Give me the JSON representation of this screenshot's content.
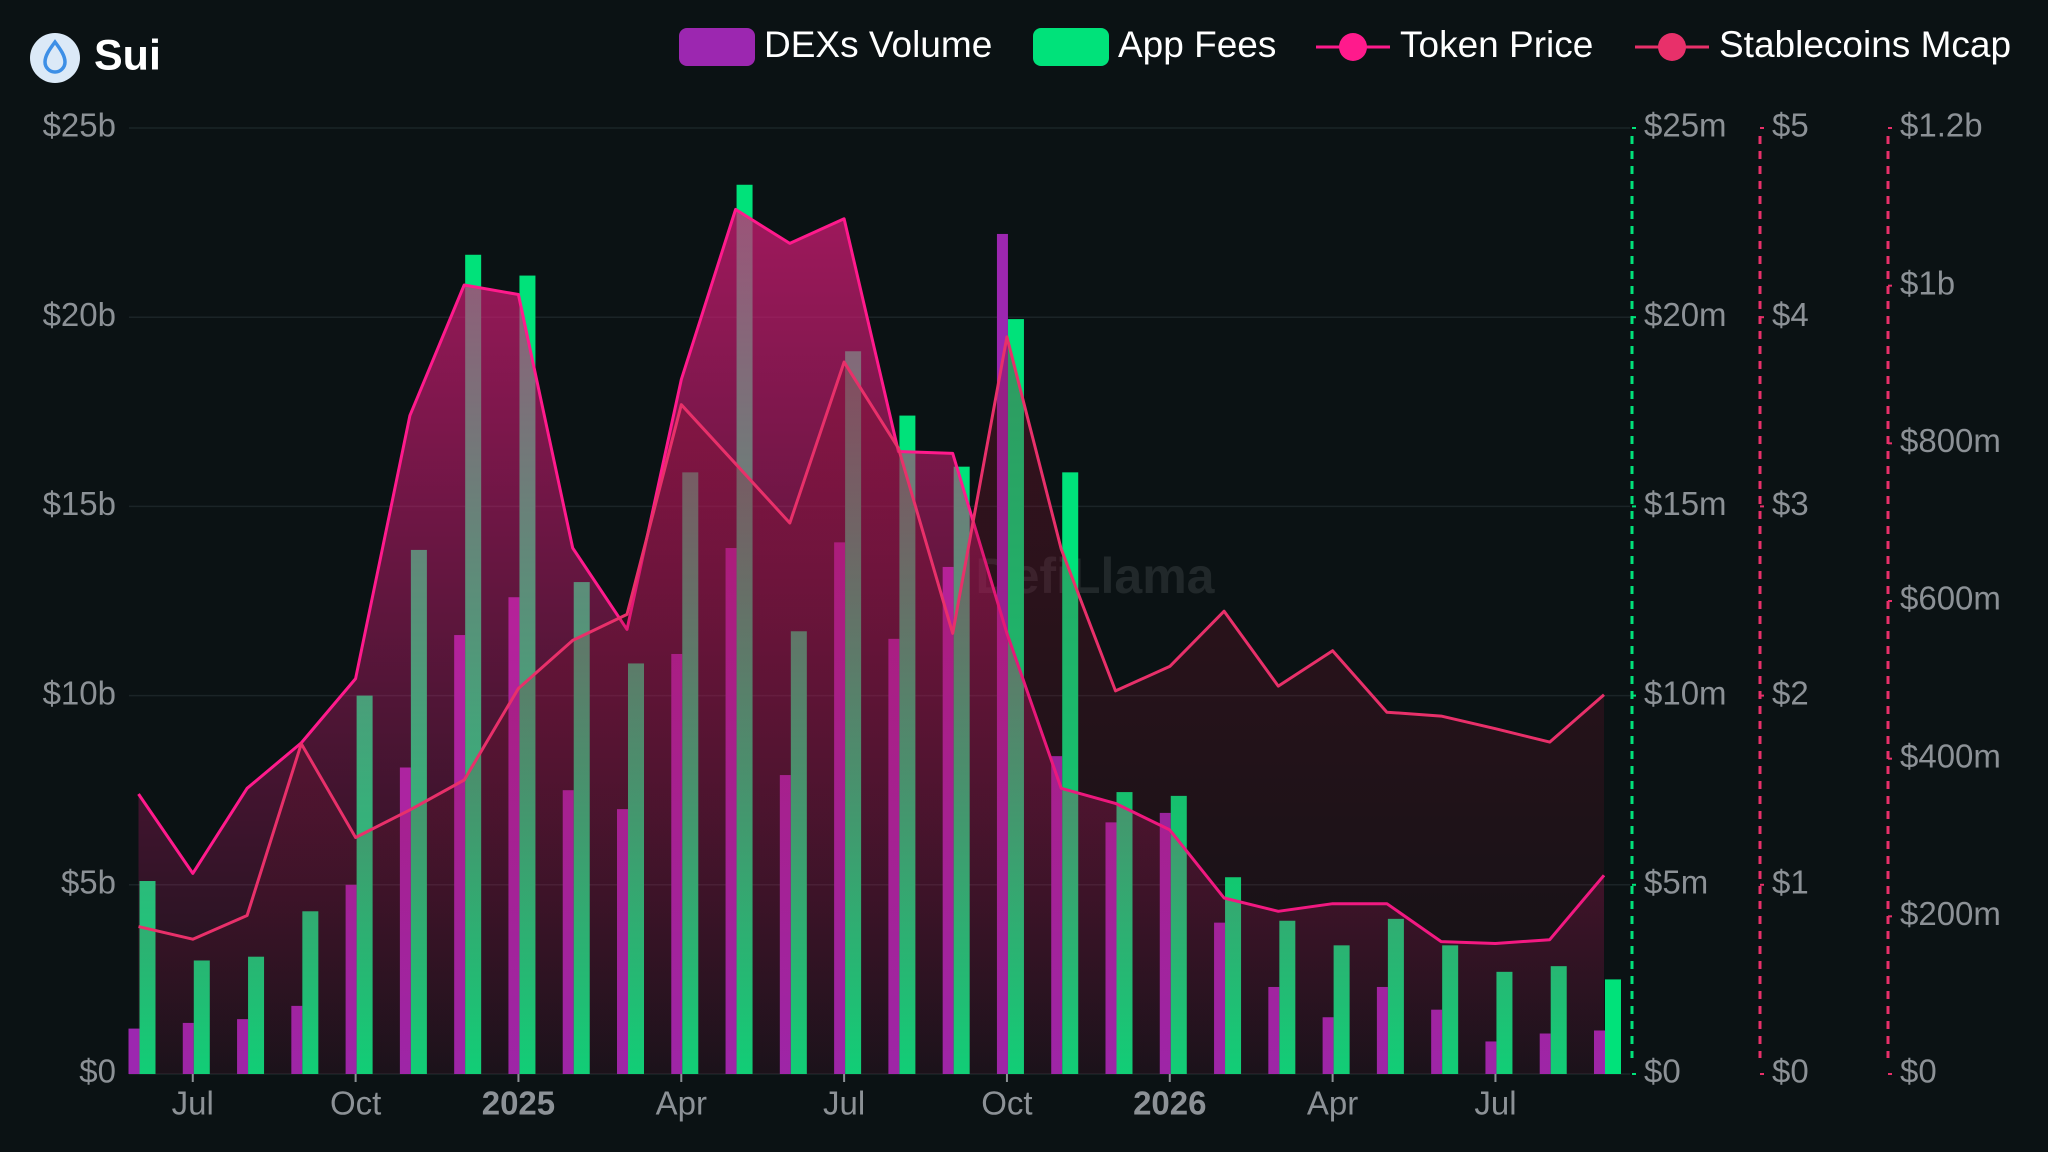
{
  "chart_data": {
    "type": "combo",
    "title": "Sui",
    "watermark": "DefiLlama",
    "x": [
      "2024-06",
      "2024-07",
      "2024-08",
      "2024-09",
      "2024-10",
      "2024-11",
      "2024-12",
      "2025-01",
      "2025-02",
      "2025-03",
      "2025-04",
      "2025-05",
      "2025-06",
      "2025-07",
      "2025-08",
      "2025-09",
      "2025-10",
      "2025-11",
      "2025-12",
      "2026-01",
      "2026-02",
      "2026-03",
      "2026-04",
      "2026-05",
      "2026-06",
      "2026-07",
      "2026-08",
      "2026-09"
    ],
    "xticks": [
      {
        "value": "2024-07",
        "label": "Jul"
      },
      {
        "value": "2024-10",
        "label": "Oct"
      },
      {
        "value": "2025-01",
        "label": "2025"
      },
      {
        "value": "2025-04",
        "label": "Apr"
      },
      {
        "value": "2025-07",
        "label": "Jul"
      },
      {
        "value": "2025-10",
        "label": "Oct"
      },
      {
        "value": "2026-01",
        "label": "2026"
      },
      {
        "value": "2026-04",
        "label": "Apr"
      },
      {
        "value": "2026-07",
        "label": "Jul"
      }
    ],
    "ylim": [
      0,
      25
    ],
    "yticks": [
      {
        "value": 0,
        "label": "$0"
      },
      {
        "value": 5,
        "label": "$5b"
      },
      {
        "value": 10,
        "label": "$10b"
      },
      {
        "value": 15,
        "label": "$15b"
      },
      {
        "value": 20,
        "label": "$20b"
      },
      {
        "value": 25,
        "label": "$25b"
      }
    ],
    "y2lim": [
      0,
      25
    ],
    "y2ticks": [
      {
        "value": 0,
        "label": "$0"
      },
      {
        "value": 5,
        "label": "$5m"
      },
      {
        "value": 10,
        "label": "$10m"
      },
      {
        "value": 15,
        "label": "$15m"
      },
      {
        "value": 20,
        "label": "$20m"
      },
      {
        "value": 25,
        "label": "$25m"
      }
    ],
    "y3lim": [
      0,
      5
    ],
    "y3ticks": [
      {
        "value": 0,
        "label": "$0"
      },
      {
        "value": 1,
        "label": "$1"
      },
      {
        "value": 2,
        "label": "$2"
      },
      {
        "value": 3,
        "label": "$3"
      },
      {
        "value": 4,
        "label": "$4"
      },
      {
        "value": 5,
        "label": "$5"
      }
    ],
    "y4lim": [
      0,
      1200
    ],
    "y4ticks": [
      {
        "value": 0,
        "label": "$0"
      },
      {
        "value": 200,
        "label": "$200m"
      },
      {
        "value": 400,
        "label": "$400m"
      },
      {
        "value": 600,
        "label": "$600m"
      },
      {
        "value": 800,
        "label": "$800m"
      },
      {
        "value": 1000,
        "label": "$1b"
      },
      {
        "value": 1200,
        "label": "$1.2b"
      }
    ],
    "grid": true,
    "series": [
      {
        "name": "DEXs Volume",
        "type": "bar",
        "axis": "y",
        "color": "#9c27b0",
        "values": [
          1.2,
          1.35,
          1.45,
          1.8,
          5.0,
          8.1,
          11.6,
          12.6,
          7.5,
          7.0,
          11.1,
          13.9,
          7.9,
          14.05,
          11.5,
          13.4,
          22.2,
          8.4,
          6.65,
          6.9,
          4.0,
          2.3,
          1.5,
          2.3,
          1.7,
          0.86,
          1.07,
          1.15
        ]
      },
      {
        "name": "App Fees",
        "type": "bar",
        "axis": "y2",
        "color": "#00e27a",
        "values": [
          5.1,
          3.0,
          3.1,
          4.3,
          10.0,
          13.85,
          21.65,
          21.1,
          13.0,
          10.85,
          15.9,
          23.5,
          11.7,
          19.1,
          17.4,
          16.05,
          19.95,
          15.9,
          7.45,
          7.35,
          5.2,
          4.05,
          3.4,
          4.1,
          3.4,
          2.7,
          2.85,
          2.5
        ]
      },
      {
        "name": "Token Price",
        "type": "area",
        "axis": "y3",
        "color": "#ff1a8c",
        "values": [
          1.48,
          1.06,
          1.51,
          1.75,
          2.09,
          3.48,
          4.17,
          4.12,
          2.78,
          2.35,
          3.67,
          4.57,
          4.39,
          4.52,
          3.29,
          3.28,
          2.33,
          1.51,
          1.43,
          1.29,
          0.93,
          0.86,
          0.9,
          0.9,
          0.7,
          0.69,
          0.71,
          1.05
        ]
      },
      {
        "name": "Stablecoins Mcap",
        "type": "line",
        "axis": "y4",
        "color": "#e8306a",
        "values": [
          187,
          171,
          201,
          419,
          300,
          335,
          373,
          489,
          550,
          583,
          849,
          774,
          699,
          903,
          794,
          559,
          935,
          666,
          486,
          517,
          587,
          492,
          537,
          459,
          454,
          438,
          421,
          481
        ]
      }
    ]
  }
}
